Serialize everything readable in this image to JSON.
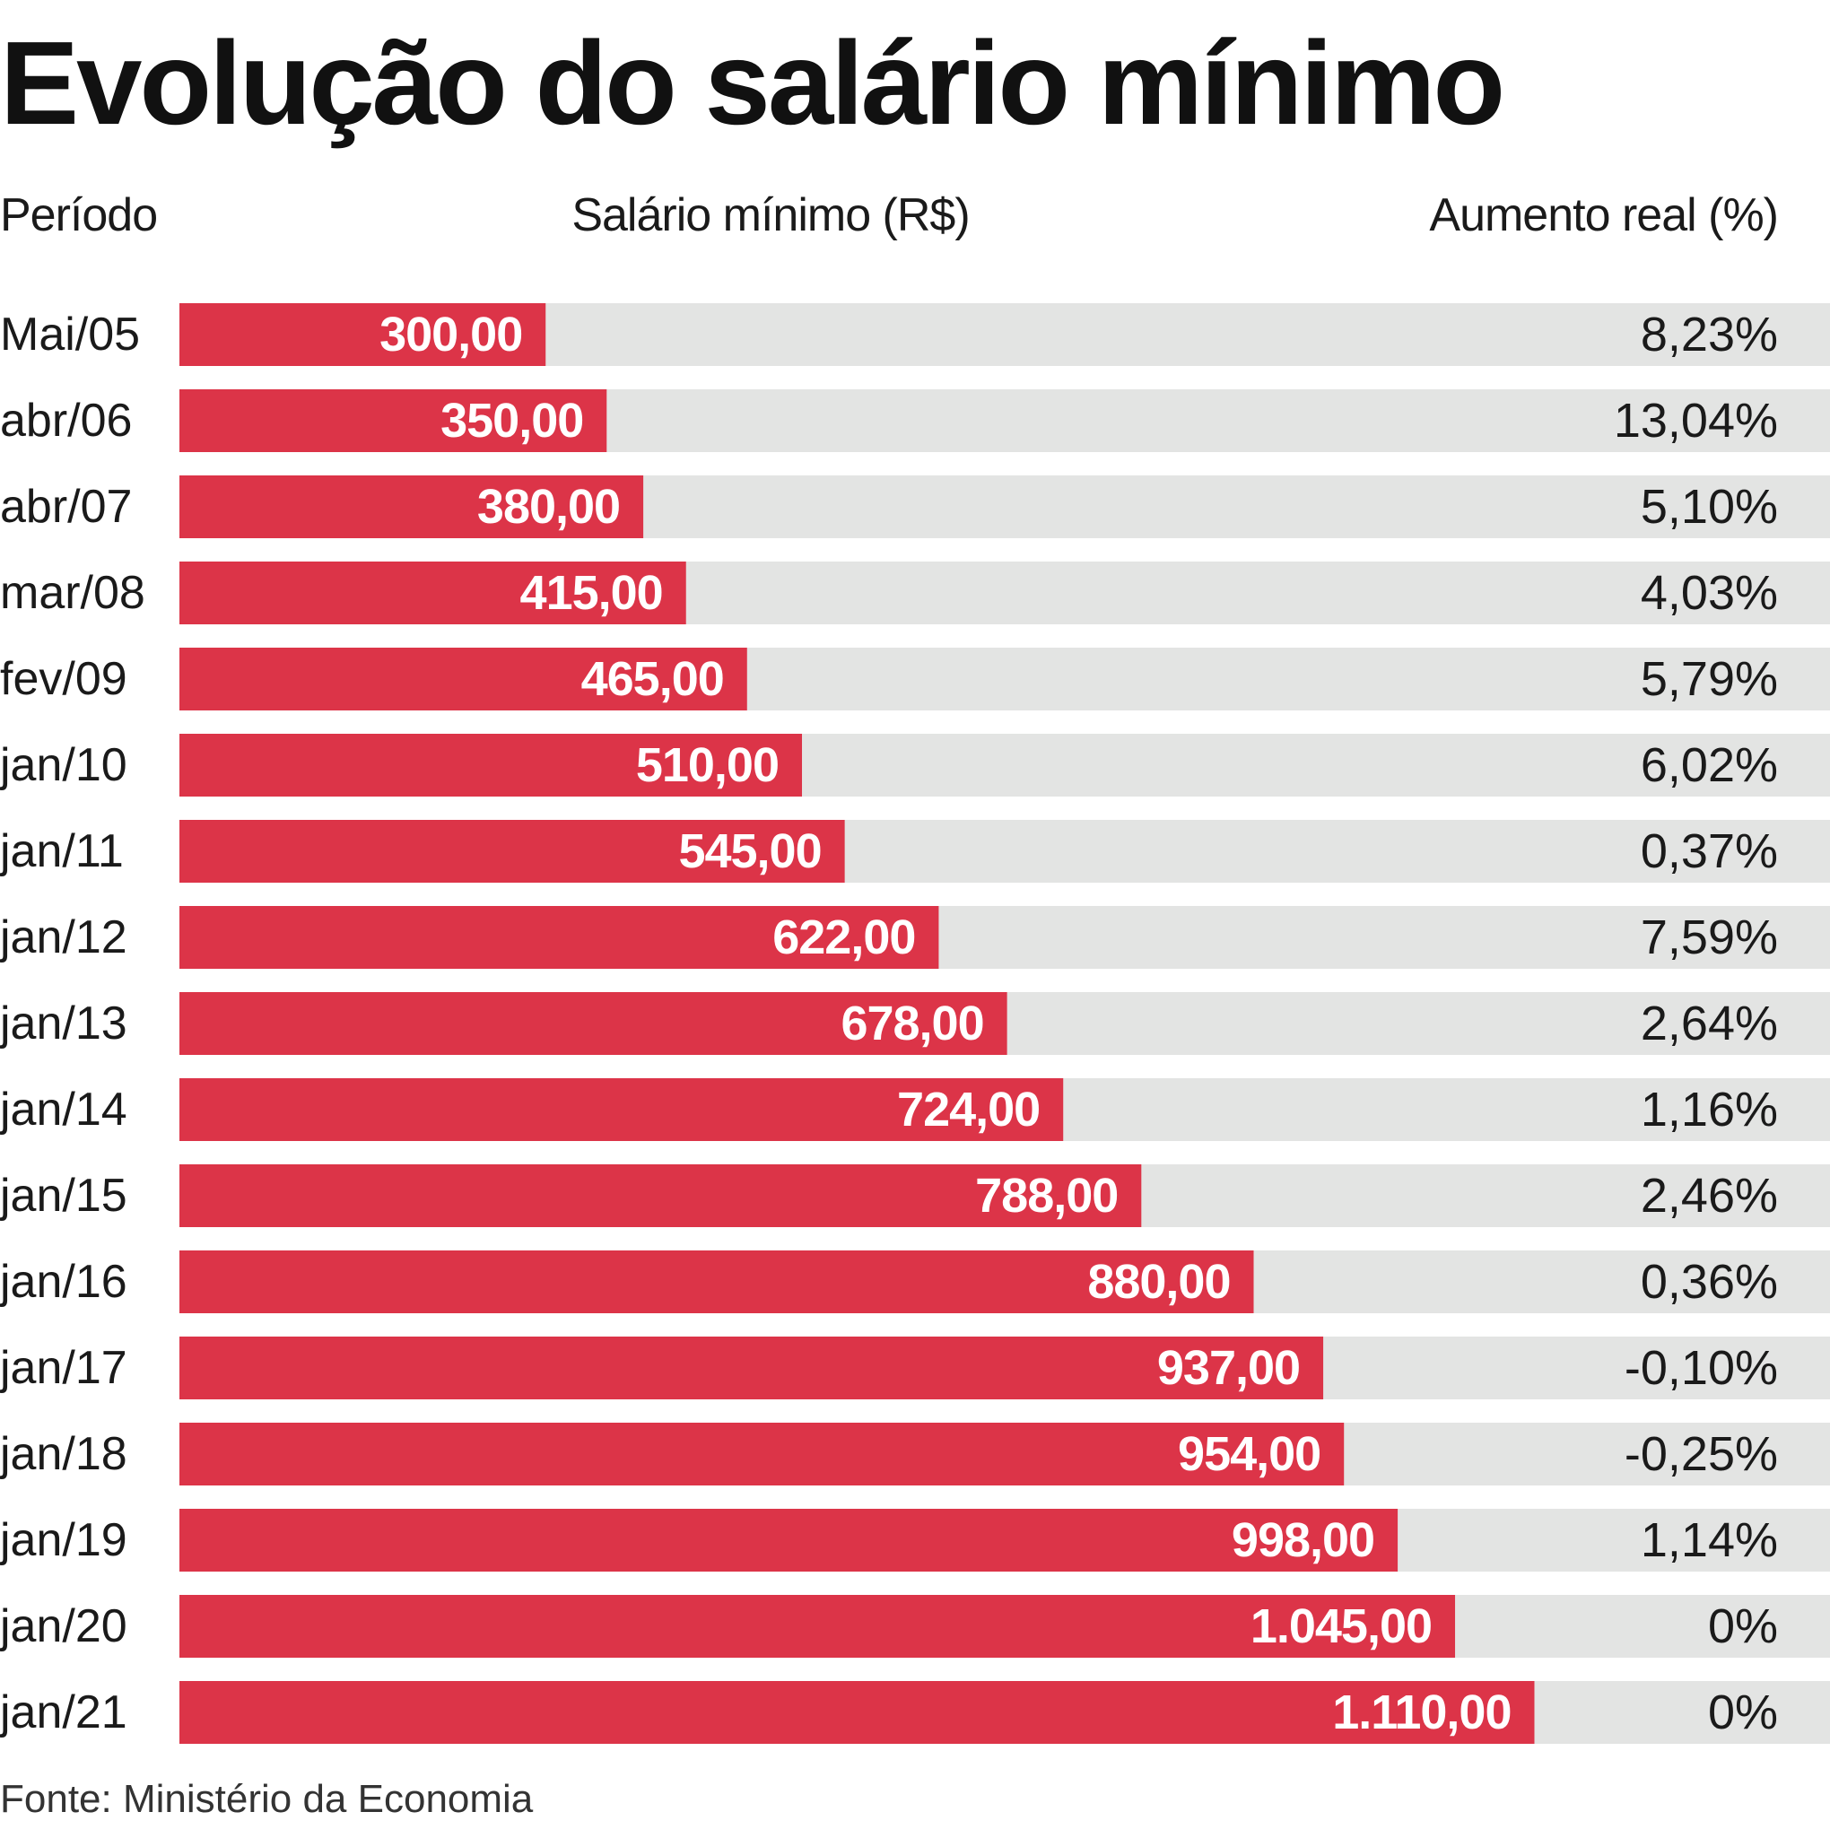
{
  "title": "Evolução do salário mínimo",
  "headers": {
    "period": "Período",
    "salary": "Salário mínimo (R$)",
    "increase": "Aumento real (%)"
  },
  "source": "Fonte: Ministério da Economia",
  "colors": {
    "bar": "#dc3448",
    "track": "#e3e4e3",
    "value_text": "#ffffff"
  },
  "chart_data": {
    "type": "bar",
    "orientation": "horizontal",
    "title": "Evolução do salário mínimo",
    "categories": [
      "Mai/05",
      "abr/06",
      "abr/07",
      "mar/08",
      "fev/09",
      "jan/10",
      "jan/11",
      "jan/12",
      "jan/13",
      "jan/14",
      "jan/15",
      "jan/16",
      "jan/17",
      "jan/18",
      "jan/19",
      "jan/20",
      "jan/21"
    ],
    "values": [
      300,
      350,
      380,
      415,
      465,
      510,
      545,
      622,
      678,
      724,
      788,
      880,
      937,
      954,
      998,
      1045,
      1110
    ],
    "value_labels": [
      "300,00",
      "350,00",
      "380,00",
      "415,00",
      "465,00",
      "510,00",
      "545,00",
      "622,00",
      "678,00",
      "724,00",
      "788,00",
      "880,00",
      "937,00",
      "954,00",
      "998,00",
      "1.045,00",
      "1.110,00"
    ],
    "real_increase_pct": [
      8.23,
      13.04,
      5.1,
      4.03,
      5.79,
      6.02,
      0.37,
      7.59,
      2.64,
      1.16,
      2.46,
      0.36,
      -0.1,
      -0.25,
      1.14,
      0,
      0
    ],
    "real_increase_labels": [
      "8,23%",
      "13,04%",
      "5,10%",
      "4,03%",
      "5,79%",
      "6,02%",
      "0,37%",
      "7,59%",
      "2,64%",
      "1,16%",
      "2,46%",
      "0,36%",
      "-0,10%",
      "-0,25%",
      "1,14%",
      "0%",
      "0%"
    ],
    "xlim": [
      0,
      1700
    ],
    "grid": false,
    "legend": "none"
  }
}
